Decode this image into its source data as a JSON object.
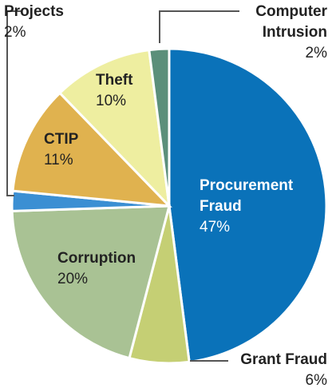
{
  "chart_data": {
    "type": "pie",
    "categories": [
      "Procurement Fraud",
      "Grant Fraud",
      "Corruption",
      "Projects",
      "CTIP",
      "Theft",
      "Computer Intrusion"
    ],
    "values": [
      47,
      6,
      20,
      2,
      11,
      10,
      2
    ],
    "value_labels": [
      "47%",
      "6%",
      "20%",
      "2%",
      "11%",
      "10%",
      "2%"
    ],
    "colors": [
      "#0a72b9",
      "#c5cf74",
      "#a9c294",
      "#3b8fd3",
      "#e0b24f",
      "#eeeea0",
      "#5b8f7a"
    ]
  }
}
